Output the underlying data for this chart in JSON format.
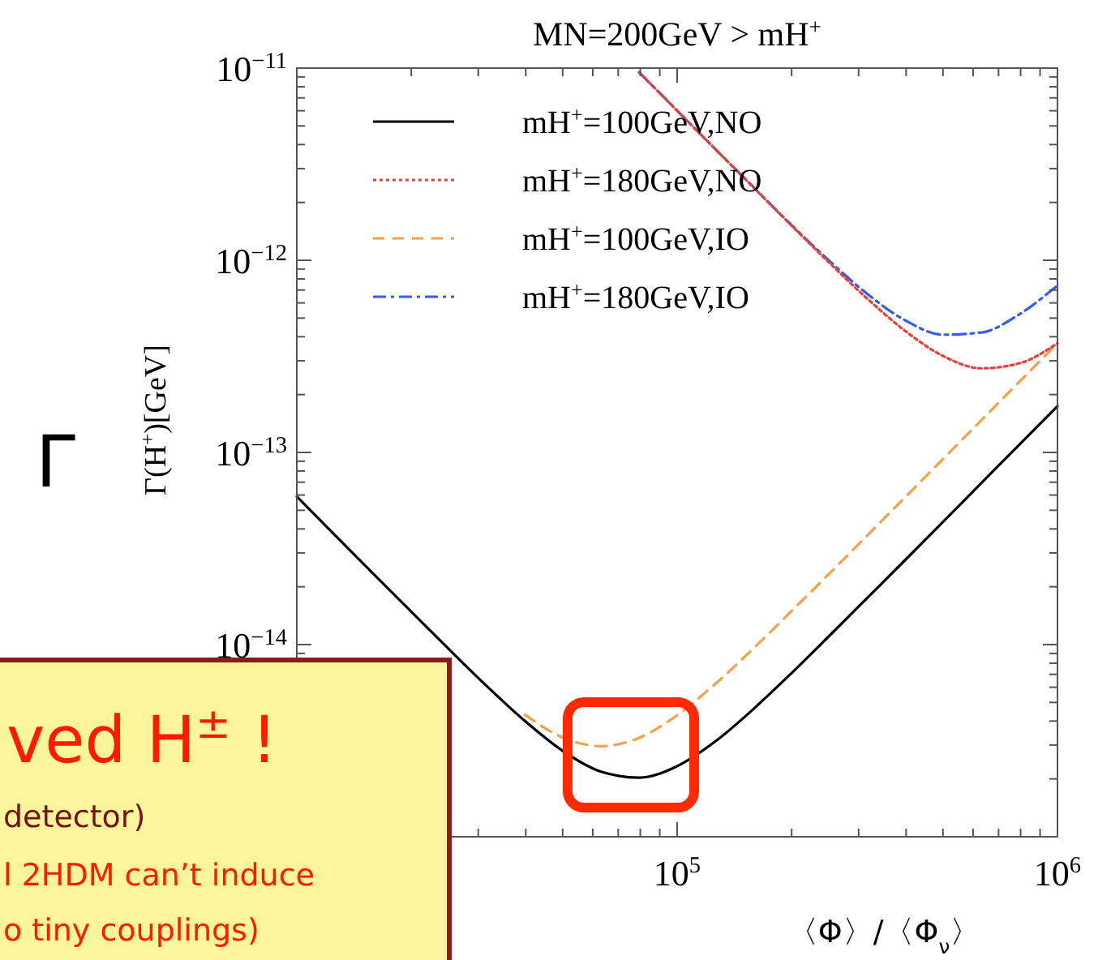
{
  "chart_data": {
    "type": "line",
    "title": "MN=200GeV > mH$^{+}$",
    "xlabel": "〈Φ〉/〈Φ$_{ν}$〉",
    "ylabel": "Γ(H$^{+}$)[GeV]",
    "log": "xy",
    "grid": false,
    "legend": "top left",
    "xlim": [
      10000,
      1000000
    ],
    "ylim": [
      1e-15,
      1e-11
    ],
    "xticks": [
      {
        "value": 10000,
        "label": null
      },
      {
        "value": 100000,
        "label": "10$^{5}$"
      },
      {
        "value": 1000000,
        "label": "10$^{6}$"
      }
    ],
    "yticks": [
      {
        "value": 1e-15,
        "label": null
      },
      {
        "value": 1e-14,
        "label": "10$^{−14}$"
      },
      {
        "value": 1e-13,
        "label": "10$^{−13}$"
      },
      {
        "value": 1e-12,
        "label": "10$^{−12}$"
      },
      {
        "value": 1e-11,
        "label": "10$^{−11}$"
      }
    ],
    "x": [
      10000,
      12589,
      15849,
      19953,
      25119,
      31623,
      39811,
      50119,
      63096,
      79433,
      100000,
      125893,
      158489,
      199526,
      251189,
      316228,
      398107,
      501187,
      630957,
      794328,
      1000000
    ],
    "series": [
      {
        "name": "mH$^{+}$=100GeV,NO",
        "color": "#000000",
        "line_style": "solid",
        "values": [
          5.9e-14,
          3.72e-14,
          2.35e-14,
          1.49e-14,
          9.46e-15,
          6.07e-15,
          4e-15,
          2.79e-15,
          2.18e-15,
          2.03e-15,
          2.33e-15,
          3.13e-15,
          4.61e-15,
          7.08e-15,
          1.11e-14,
          1.75e-14,
          2.76e-14,
          4.37e-14,
          6.93e-14,
          1.098e-13,
          1.74e-13
        ]
      },
      {
        "name": "mH$^{+}$=180GeV,NO",
        "color": "#e8413c",
        "line_style": "dotted",
        "x": [
          79433,
          100000,
          125893,
          158489,
          199526,
          251189,
          316228,
          398107,
          501187,
          630957,
          794328,
          1000000
        ],
        "values": [
          9.51e-12,
          6e-12,
          3.79e-12,
          2.4e-12,
          1.52e-12,
          9.71e-13,
          6.31e-13,
          4.28e-13,
          3.17e-13,
          2.74e-13,
          2.91e-13,
          3.7e-13
        ]
      },
      {
        "name": "mH$^{+}$=100GeV,IO",
        "color": "#f5a04a",
        "line_style": "dashed",
        "values": [
          null,
          null,
          null,
          null,
          null,
          null,
          4.31e-15,
          3.28e-15,
          2.96e-15,
          3.27e-15,
          4.29e-15,
          6.24e-15,
          9.53e-15,
          1.49e-14,
          2.34e-14,
          3.7e-14,
          5.86e-14,
          9.29e-14,
          1.473e-13,
          2.335e-13,
          3.7e-13
        ]
      },
      {
        "name": "mH$^{+}$=180GeV,IO",
        "color": "#2f5ef0",
        "line_style": "dashdot",
        "x": [
          79433,
          100000,
          125893,
          158489,
          199526,
          251189,
          316228,
          398107,
          501187,
          630957,
          794328,
          1000000
        ],
        "values": [
          9.51e-12,
          6.01e-12,
          3.8e-12,
          2.41e-12,
          1.53e-12,
          9.94e-13,
          6.68e-13,
          4.86e-13,
          4.1e-13,
          4.21e-13,
          5.24e-13,
          7.4e-13
        ]
      }
    ],
    "annotations": [
      "Γ",
      "ved H$^{±}$ !",
      "detector)",
      "l 2HDM can’t induce",
      "o tiny couplings)"
    ]
  }
}
